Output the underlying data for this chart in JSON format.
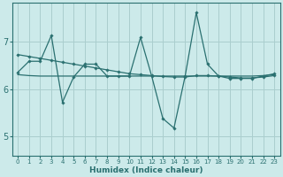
{
  "xlabel": "Humidex (Indice chaleur)",
  "ylabel": "",
  "background_color": "#cceaea",
  "grid_color": "#aacece",
  "line_color": "#2a7070",
  "xlim": [
    -0.5,
    23.5
  ],
  "ylim": [
    4.6,
    7.8
  ],
  "yticks": [
    5,
    6,
    7
  ],
  "xticks": [
    0,
    1,
    2,
    3,
    4,
    5,
    6,
    7,
    8,
    9,
    10,
    11,
    12,
    13,
    14,
    15,
    16,
    17,
    18,
    19,
    20,
    21,
    22,
    23
  ],
  "zigzag_x": [
    0,
    1,
    2,
    3,
    4,
    5,
    6,
    7,
    8,
    9,
    10,
    11,
    12,
    13,
    14,
    15,
    16,
    17,
    18,
    19,
    20,
    21,
    22,
    23
  ],
  "zigzag_y": [
    6.35,
    6.58,
    6.58,
    7.12,
    5.72,
    6.25,
    6.52,
    6.52,
    6.27,
    6.27,
    6.27,
    7.08,
    6.27,
    5.38,
    5.18,
    6.27,
    7.6,
    6.52,
    6.27,
    6.22,
    6.22,
    6.22,
    6.27,
    6.32
  ],
  "smooth_x": [
    0,
    1,
    2,
    3,
    4,
    5,
    6,
    7,
    8,
    9,
    10,
    11,
    12,
    13,
    14,
    15,
    16,
    17,
    18,
    19,
    20,
    21,
    22,
    23
  ],
  "smooth_y": [
    6.72,
    6.68,
    6.64,
    6.6,
    6.56,
    6.52,
    6.48,
    6.44,
    6.4,
    6.36,
    6.32,
    6.3,
    6.28,
    6.26,
    6.25,
    6.25,
    6.28,
    6.28,
    6.27,
    6.25,
    6.23,
    6.23,
    6.25,
    6.28
  ],
  "flat_x": [
    0,
    1,
    2,
    3,
    4,
    5,
    6,
    7,
    8,
    9,
    10,
    11,
    12,
    13,
    14,
    15,
    16,
    17,
    18,
    19,
    20,
    21,
    22,
    23
  ],
  "flat_y": [
    6.3,
    6.28,
    6.27,
    6.27,
    6.27,
    6.27,
    6.27,
    6.27,
    6.27,
    6.27,
    6.27,
    6.27,
    6.27,
    6.27,
    6.27,
    6.27,
    6.27,
    6.27,
    6.27,
    6.27,
    6.27,
    6.27,
    6.28,
    6.3
  ]
}
